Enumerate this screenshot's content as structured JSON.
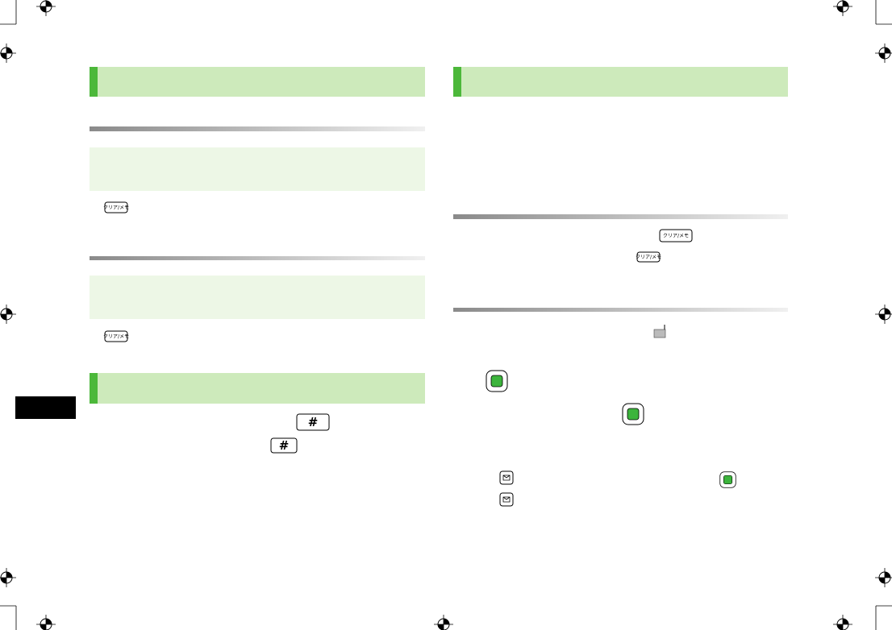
{
  "keys": {
    "clear": "クリア/メモ",
    "hash": "#"
  }
}
